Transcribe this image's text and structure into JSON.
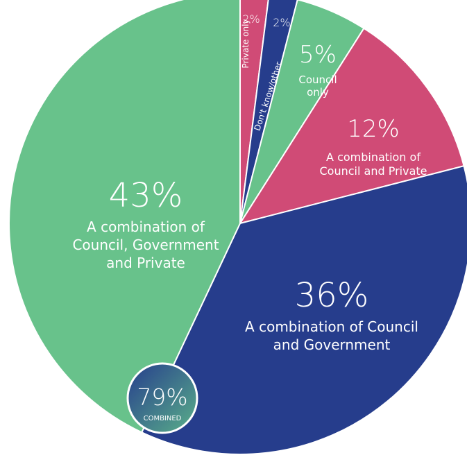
{
  "chart_data": {
    "type": "pie",
    "start_angle_deg": 0,
    "direction": "clockwise",
    "slices": [
      {
        "label": "Private only",
        "value": 2,
        "pct_text": "2%",
        "color": "#d04b76",
        "style": "rotated-small"
      },
      {
        "label": "Don't know/other",
        "value": 2,
        "pct_text": "2%",
        "color": "#263d8c",
        "style": "rotated-small"
      },
      {
        "label": "Council only",
        "value": 5,
        "pct_text": "5%",
        "color": "#68c28b",
        "style": "small",
        "label_lines": [
          "Council",
          "only"
        ]
      },
      {
        "label": "A combination of Council and Private",
        "value": 12,
        "pct_text": "12%",
        "color": "#d04b76",
        "style": "medium",
        "label_lines": [
          "A combination of",
          "Council and Private"
        ]
      },
      {
        "label": "A combination of Council and Government",
        "value": 36,
        "pct_text": "36%",
        "color": "#263d8c",
        "style": "large",
        "label_lines": [
          "A combination of Council",
          "and Government"
        ]
      },
      {
        "label": "A combination of Council, Government and Private",
        "value": 43,
        "pct_text": "43%",
        "color": "#68c28b",
        "style": "large",
        "label_lines": [
          "A combination of",
          "Council, Government",
          "and Private"
        ]
      }
    ],
    "callout": {
      "value_text": "79%",
      "label": "COMBINED",
      "gradient": [
        "#263d8c",
        "#5ab08a"
      ]
    }
  }
}
